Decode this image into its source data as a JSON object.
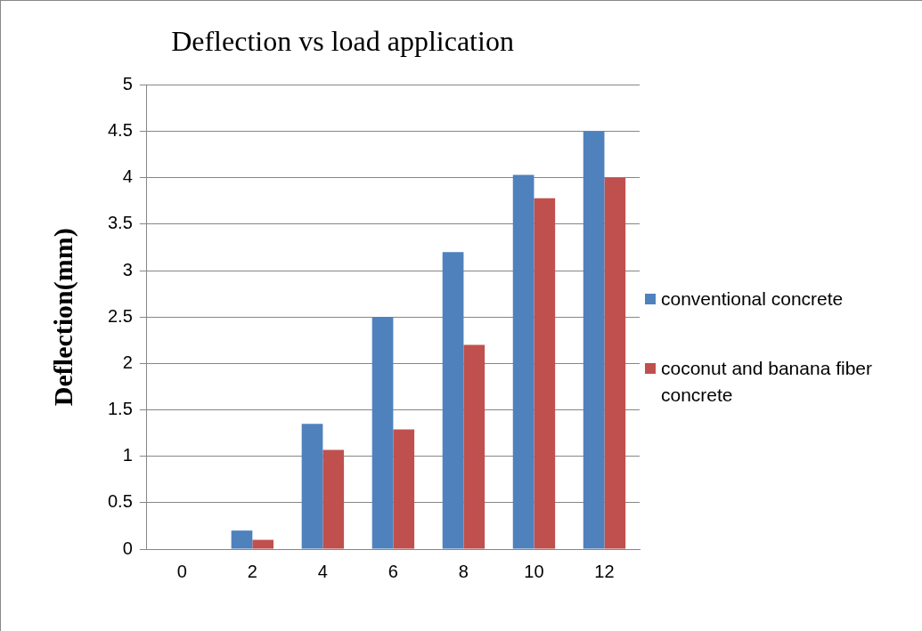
{
  "chart_data": {
    "type": "bar",
    "title": "Deflection vs load application",
    "ylabel": "Deflection(mm)",
    "categories": [
      "0",
      "2",
      "4",
      "6",
      "8",
      "10",
      "12"
    ],
    "series": [
      {
        "name": "conventional concrete",
        "color": "#4f81bd",
        "values": [
          0,
          0.2,
          1.35,
          2.5,
          3.2,
          4.03,
          4.5
        ]
      },
      {
        "name": "coconut and banana fiber concrete",
        "color": "#c0504d",
        "values": [
          0,
          0.1,
          1.07,
          1.29,
          2.2,
          3.78,
          4.0
        ]
      }
    ],
    "ylim": [
      0,
      5
    ],
    "yticks": [
      0,
      0.5,
      1,
      1.5,
      2,
      2.5,
      3,
      3.5,
      4,
      4.5,
      5
    ],
    "grid": "y",
    "legend": "right"
  }
}
